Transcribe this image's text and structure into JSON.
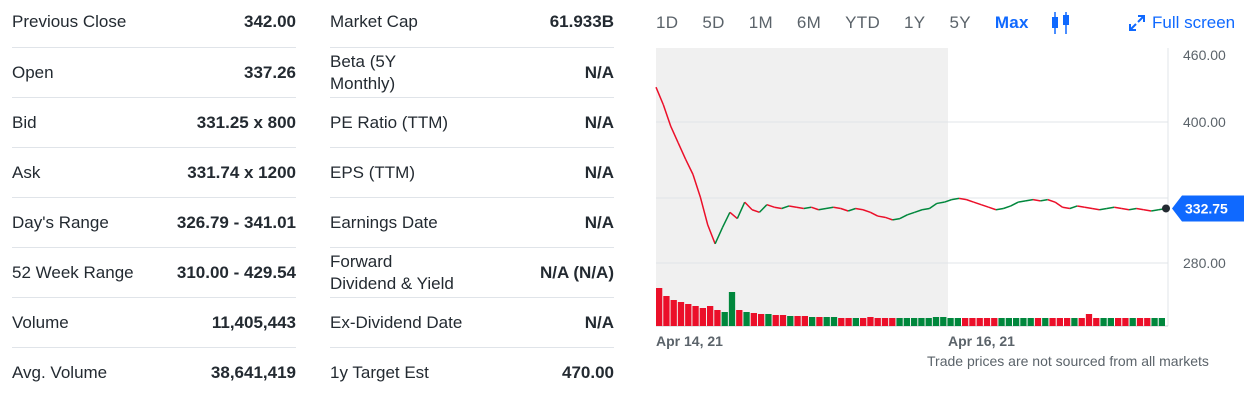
{
  "stats_left": [
    {
      "label": "Previous Close",
      "value": "342.00"
    },
    {
      "label": "Open",
      "value": "337.26"
    },
    {
      "label": "Bid",
      "value": "331.25 x 800"
    },
    {
      "label": "Ask",
      "value": "331.74 x 1200"
    },
    {
      "label": "Day's Range",
      "value": "326.79 - 341.01"
    },
    {
      "label": "52 Week Range",
      "value": "310.00 - 429.54"
    },
    {
      "label": "Volume",
      "value": "11,405,443"
    },
    {
      "label": "Avg. Volume",
      "value": "38,641,419"
    }
  ],
  "stats_right": [
    {
      "label": "Market Cap",
      "value": "61.933B"
    },
    {
      "label_line1": "Beta (5Y",
      "label_line2": "Monthly)",
      "value": "N/A"
    },
    {
      "label": "PE Ratio (TTM)",
      "value": "N/A"
    },
    {
      "label": "EPS (TTM)",
      "value": "N/A"
    },
    {
      "label": "Earnings Date",
      "value": "N/A"
    },
    {
      "label_line1": "Forward",
      "label_line2": "Dividend & Yield",
      "value": "N/A (N/A)"
    },
    {
      "label": "Ex-Dividend Date",
      "value": "N/A"
    },
    {
      "label": "1y Target Est",
      "value": "470.00"
    }
  ],
  "chart_controls": {
    "ranges": [
      "1D",
      "5D",
      "1M",
      "6M",
      "YTD",
      "1Y",
      "5Y",
      "Max"
    ],
    "active_range": "Max",
    "candle_icon": "candlestick-icon",
    "fullscreen_label": "Full screen",
    "fullscreen_icon": "expand-arrows-icon"
  },
  "colors": {
    "accent": "#0f69ff",
    "up": "#00873c",
    "down": "#eb0f29",
    "price_tag": "#0f69ff"
  },
  "chart_data": {
    "type": "line",
    "y_ticks": [
      "460.00",
      "400.00",
      "280.00"
    ],
    "ylim": [
      240,
      460
    ],
    "x_ticks": [
      "Apr 14, 21",
      "Apr 16, 21"
    ],
    "current_price": "332.75",
    "price_series": [
      429,
      415,
      398,
      385,
      372,
      360,
      342,
      320,
      305,
      318,
      330,
      325,
      338,
      332,
      330,
      336,
      334,
      333,
      335,
      334,
      333,
      334,
      332,
      333,
      334,
      333,
      331,
      333,
      332,
      330,
      327,
      326,
      324,
      325,
      328,
      330,
      332,
      333,
      337,
      338,
      340,
      341,
      340,
      338,
      336,
      334,
      332,
      333,
      335,
      338,
      339,
      340,
      339,
      340,
      338,
      334,
      333,
      335,
      334,
      333,
      332,
      333,
      334,
      333,
      332,
      333,
      332,
      331,
      332,
      333
    ],
    "volume_series": [
      38,
      30,
      26,
      24,
      22,
      20,
      18,
      20,
      16,
      14,
      34,
      16,
      14,
      13,
      12,
      12,
      11,
      11,
      10,
      10,
      10,
      9,
      9,
      9,
      9,
      8,
      8,
      8,
      8,
      9,
      8,
      8,
      8,
      8,
      8,
      8,
      8,
      8,
      9,
      9,
      8,
      8,
      8,
      8,
      8,
      8,
      8,
      8,
      8,
      8,
      8,
      8,
      8,
      8,
      8,
      8,
      8,
      8,
      8,
      12,
      8,
      8,
      8,
      8,
      8,
      8,
      8,
      8,
      8,
      8
    ],
    "trade_note": "Trade prices are not sourced from all markets"
  }
}
